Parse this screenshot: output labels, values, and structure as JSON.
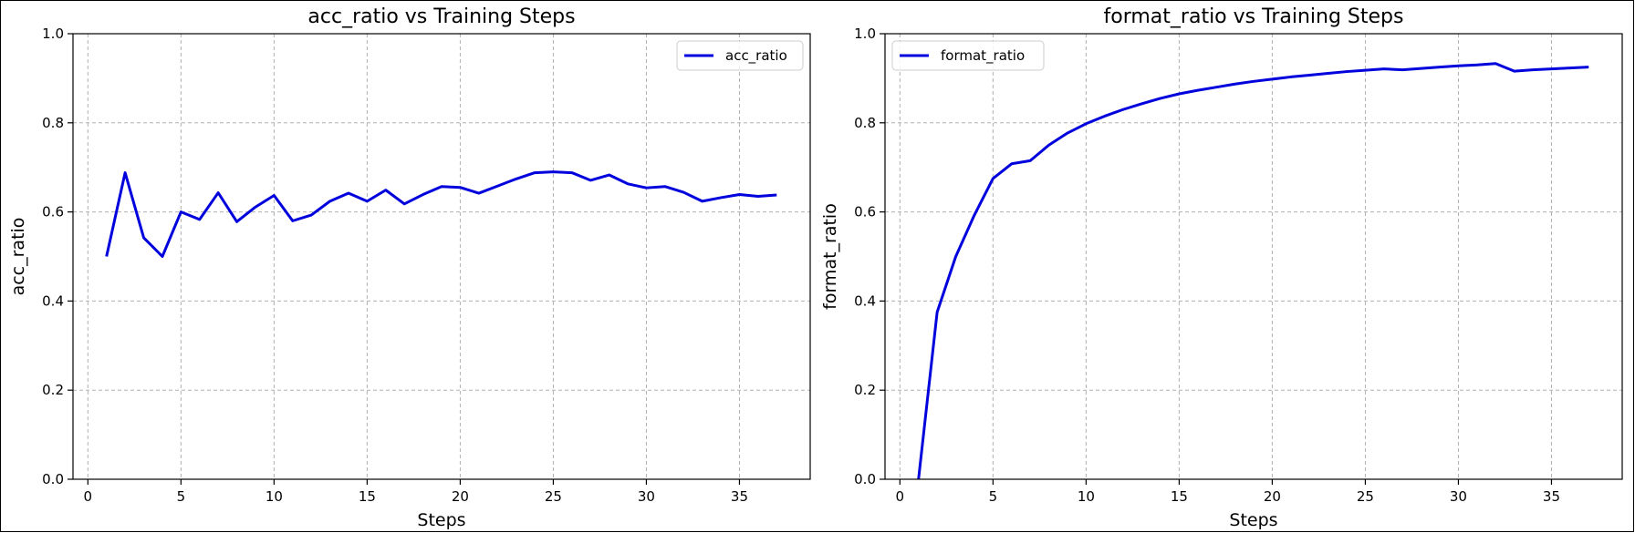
{
  "chart_data": [
    {
      "type": "line",
      "title": "acc_ratio vs Training Steps",
      "xlabel": "Steps",
      "ylabel": "acc_ratio",
      "xlim": [
        -0.8,
        38.8
      ],
      "ylim": [
        0.0,
        1.0
      ],
      "xticks": [
        0,
        5,
        10,
        15,
        20,
        25,
        30,
        35
      ],
      "yticks": [
        0.0,
        0.2,
        0.4,
        0.6,
        0.8,
        1.0
      ],
      "grid": true,
      "legend_position": "top-right",
      "line_color": "#0000dd",
      "series": [
        {
          "name": "acc_ratio",
          "x": [
            1,
            2,
            3,
            4,
            5,
            6,
            7,
            8,
            9,
            10,
            11,
            12,
            13,
            14,
            15,
            16,
            17,
            18,
            19,
            20,
            21,
            22,
            23,
            24,
            25,
            26,
            27,
            28,
            29,
            30,
            31,
            32,
            33,
            34,
            35,
            36,
            37
          ],
          "y": [
            0.5,
            0.688,
            0.542,
            0.5,
            0.6,
            0.583,
            0.643,
            0.578,
            0.611,
            0.637,
            0.58,
            0.593,
            0.624,
            0.642,
            0.624,
            0.649,
            0.618,
            0.639,
            0.657,
            0.655,
            0.642,
            0.658,
            0.674,
            0.688,
            0.69,
            0.688,
            0.671,
            0.683,
            0.663,
            0.654,
            0.657,
            0.644,
            0.624,
            0.632,
            0.639,
            0.635,
            0.638
          ]
        }
      ]
    },
    {
      "type": "line",
      "title": "format_ratio vs Training Steps",
      "xlabel": "Steps",
      "ylabel": "format_ratio",
      "xlim": [
        -0.8,
        38.8
      ],
      "ylim": [
        0.0,
        1.0
      ],
      "xticks": [
        0,
        5,
        10,
        15,
        20,
        25,
        30,
        35
      ],
      "yticks": [
        0.0,
        0.2,
        0.4,
        0.6,
        0.8,
        1.0
      ],
      "grid": true,
      "legend_position": "top-left",
      "line_color": "#0000dd",
      "series": [
        {
          "name": "format_ratio",
          "x": [
            1,
            2,
            3,
            4,
            5,
            6,
            7,
            8,
            9,
            10,
            11,
            12,
            13,
            14,
            15,
            16,
            17,
            18,
            19,
            20,
            21,
            22,
            23,
            24,
            25,
            26,
            27,
            28,
            29,
            30,
            31,
            32,
            33,
            34,
            35,
            36,
            37
          ],
          "y": [
            0.0,
            0.375,
            0.5,
            0.593,
            0.675,
            0.708,
            0.715,
            0.75,
            0.777,
            0.798,
            0.815,
            0.83,
            0.843,
            0.855,
            0.865,
            0.873,
            0.88,
            0.887,
            0.893,
            0.898,
            0.903,
            0.907,
            0.911,
            0.915,
            0.918,
            0.921,
            0.919,
            0.922,
            0.925,
            0.928,
            0.93,
            0.933,
            0.916,
            0.919,
            0.921,
            0.923,
            0.925
          ]
        }
      ]
    }
  ]
}
